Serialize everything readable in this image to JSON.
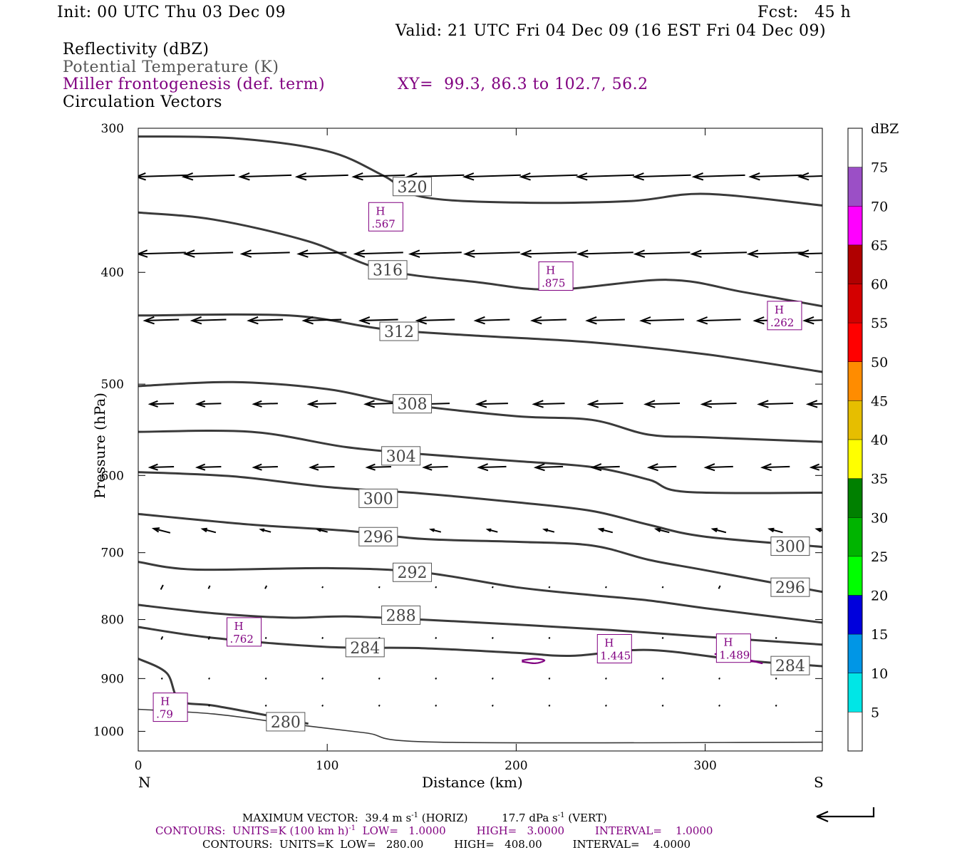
{
  "header": {
    "init": "Init: 00 UTC Thu 03 Dec 09",
    "fcst": "Fcst:   45 h",
    "valid": "Valid: 21 UTC Fri 04 Dec 09 (16 EST Fri 04 Dec 09)"
  },
  "fields": {
    "f1": "Reflectivity (dBZ)",
    "f2": "Potential Temperature (K)",
    "f3": "Miller frontogenesis (def. term)",
    "f4": "Circulation Vectors",
    "xy": "XY=  99.3, 86.3 to 102.7, 56.2"
  },
  "colors": {
    "theta": "#3a3a3a",
    "fronto": "#800080",
    "vector": "#000000"
  },
  "chart_data": {
    "type": "cross-section",
    "xlabel": "Distance (km)",
    "ylabel": "Pressure (hPa)",
    "xlim": [
      0,
      362
    ],
    "ylim": [
      300,
      1040
    ],
    "y_log": true,
    "xticks": [
      "0",
      "100",
      "200",
      "300"
    ],
    "xtick_values": [
      0,
      100,
      200,
      300
    ],
    "yticks": [
      "300",
      "400",
      "500",
      "600",
      "700",
      "800",
      "900",
      "1000"
    ],
    "ytick_values": [
      300,
      400,
      500,
      600,
      700,
      800,
      900,
      1000
    ],
    "x_left_end": "N",
    "x_right_end": "S",
    "theta_contours": [
      {
        "value": 320,
        "points": [
          [
            0,
            305
          ],
          [
            50,
            306
          ],
          [
            100,
            314
          ],
          [
            130,
            330
          ],
          [
            150,
            344
          ],
          [
            200,
            348
          ],
          [
            260,
            347
          ],
          [
            300,
            342
          ],
          [
            362,
            350
          ]
        ]
      },
      {
        "value": 316,
        "points": [
          [
            0,
            355
          ],
          [
            40,
            360
          ],
          [
            90,
            376
          ],
          [
            130,
            398
          ],
          [
            180,
            408
          ],
          [
            220,
            414
          ],
          [
            280,
            406
          ],
          [
            320,
            416
          ],
          [
            362,
            428
          ]
        ]
      },
      {
        "value": 312,
        "points": [
          [
            0,
            436
          ],
          [
            80,
            436
          ],
          [
            130,
            448
          ],
          [
            180,
            454
          ],
          [
            240,
            460
          ],
          [
            300,
            471
          ],
          [
            362,
            488
          ]
        ]
      },
      {
        "value": 308,
        "points": [
          [
            0,
            502
          ],
          [
            50,
            498
          ],
          [
            100,
            505
          ],
          [
            140,
            520
          ],
          [
            200,
            533
          ],
          [
            240,
            537
          ],
          [
            270,
            553
          ],
          [
            300,
            556
          ],
          [
            362,
            561
          ]
        ]
      },
      {
        "value": 304,
        "points": [
          [
            0,
            550
          ],
          [
            60,
            550
          ],
          [
            110,
            567
          ],
          [
            150,
            575
          ],
          [
            200,
            583
          ],
          [
            240,
            590
          ],
          [
            270,
            605
          ],
          [
            290,
            620
          ],
          [
            362,
            621
          ]
        ]
      },
      {
        "value": 300,
        "points": [
          [
            0,
            596
          ],
          [
            50,
            601
          ],
          [
            100,
            614
          ],
          [
            150,
            622
          ],
          [
            200,
            633
          ],
          [
            240,
            644
          ],
          [
            270,
            662
          ],
          [
            300,
            678
          ],
          [
            362,
            692
          ]
        ]
      },
      {
        "value": 296,
        "points": [
          [
            0,
            648
          ],
          [
            60,
            662
          ],
          [
            110,
            670
          ],
          [
            150,
            681
          ],
          [
            200,
            685
          ],
          [
            240,
            690
          ],
          [
            270,
            710
          ],
          [
            300,
            725
          ],
          [
            362,
            757
          ]
        ]
      },
      {
        "value": 292,
        "points": [
          [
            0,
            713
          ],
          [
            30,
            724
          ],
          [
            100,
            722
          ],
          [
            150,
            728
          ],
          [
            200,
            750
          ],
          [
            240,
            762
          ],
          [
            270,
            770
          ],
          [
            300,
            782
          ],
          [
            362,
            805
          ]
        ]
      },
      {
        "value": 288,
        "points": [
          [
            0,
            777
          ],
          [
            40,
            790
          ],
          [
            80,
            797
          ],
          [
            110,
            795
          ],
          [
            150,
            800
          ],
          [
            200,
            808
          ],
          [
            250,
            817
          ],
          [
            300,
            828
          ],
          [
            362,
            841
          ]
        ]
      },
      {
        "value": 284,
        "points": [
          [
            0,
            812
          ],
          [
            40,
            830
          ],
          [
            100,
            845
          ],
          [
            150,
            847
          ],
          [
            200,
            855
          ],
          [
            230,
            860
          ],
          [
            270,
            850
          ],
          [
            320,
            868
          ],
          [
            362,
            878
          ]
        ]
      },
      {
        "value": 280,
        "points": [
          [
            0,
            957
          ],
          [
            40,
            966
          ],
          [
            80,
            985
          ],
          [
            120,
            1003
          ],
          [
            160,
            1022
          ],
          [
            362,
            1022
          ]
        ]
      }
    ],
    "terrain_line": [
      [
        0,
        865
      ],
      [
        15,
        890
      ],
      [
        22,
        940
      ],
      [
        40,
        950
      ],
      [
        70,
        970
      ],
      [
        90,
        985
      ]
    ],
    "theta_labels": [
      {
        "text": "320",
        "x": 145,
        "p": 337
      },
      {
        "text": "316",
        "x": 132,
        "p": 398
      },
      {
        "text": "312",
        "x": 138,
        "p": 450
      },
      {
        "text": "308",
        "x": 145,
        "p": 520
      },
      {
        "text": "304",
        "x": 139,
        "p": 577
      },
      {
        "text": "300",
        "x": 127,
        "p": 628
      },
      {
        "text": "296",
        "x": 127,
        "p": 678
      },
      {
        "text": "292",
        "x": 145,
        "p": 728
      },
      {
        "text": "288",
        "x": 139,
        "p": 793
      },
      {
        "text": "284",
        "x": 120,
        "p": 846
      },
      {
        "text": "280",
        "x": 78,
        "p": 981
      },
      {
        "text": "300",
        "x": 345,
        "p": 691
      },
      {
        "text": "296",
        "x": 345,
        "p": 750
      },
      {
        "text": "284",
        "x": 345,
        "p": 877
      }
    ],
    "fronto_highs": [
      {
        "label": "H",
        "value": ".567",
        "x": 131,
        "p": 358
      },
      {
        "label": "H",
        "value": ".875",
        "x": 221,
        "p": 403
      },
      {
        "label": "H",
        "value": ".262",
        "x": 342,
        "p": 436
      },
      {
        "label": "H",
        "value": ".762",
        "x": 56,
        "p": 820
      },
      {
        "label": "H",
        "value": "1.445",
        "x": 252,
        "p": 848
      },
      {
        "label": "H",
        "value": "1.489",
        "x": 315,
        "p": 847
      },
      {
        "label": "H",
        "value": ".79",
        "x": 17,
        "p": 953
      }
    ],
    "fronto_contours": [
      [
        [
          203,
          868
        ],
        [
          210,
          865
        ],
        [
          215,
          868
        ],
        [
          210,
          873
        ],
        [
          203,
          870
        ]
      ],
      [
        [
          305,
          857
        ],
        [
          315,
          860
        ],
        [
          322,
          866
        ],
        [
          330,
          873
        ],
        [
          326,
          870
        ],
        [
          320,
          868
        ]
      ]
    ],
    "vector_rows": [
      {
        "p": 330,
        "u": [
          -30,
          -30,
          -30,
          -30,
          -30,
          -33,
          -33,
          -33,
          -33,
          -33,
          -30,
          -30,
          -28,
          -20,
          -18
        ]
      },
      {
        "p": 385,
        "u": [
          -28,
          -28,
          -28,
          -28,
          -28,
          -30,
          -32,
          -32,
          -32,
          -32,
          -32,
          -32,
          -28,
          -28,
          -20
        ]
      },
      {
        "p": 440,
        "u": [
          -20,
          -20,
          -20,
          -22,
          -22,
          -22,
          -20,
          -20,
          -22,
          -25,
          -25,
          -25,
          -22,
          -22,
          -18
        ]
      },
      {
        "p": 520,
        "u": [
          -14,
          -14,
          -14,
          -16,
          -16,
          -16,
          -18,
          -18,
          -20,
          -20,
          -20,
          -20,
          -18,
          -18,
          -10
        ]
      },
      {
        "p": 590,
        "u": [
          -14,
          -14,
          -14,
          -14,
          -14,
          -14,
          -16,
          -16,
          -16,
          -16,
          -16,
          -16,
          -14,
          -12,
          -8
        ]
      },
      {
        "p": 670,
        "u": [
          -10,
          -8,
          -6,
          -6,
          -6,
          -6,
          -6,
          -6,
          -8,
          -8,
          -8,
          -8,
          -8,
          -6,
          -6
        ]
      },
      {
        "p": 750,
        "u": [
          -3,
          -2,
          -2,
          -1,
          -1,
          -1,
          -1,
          -1,
          -1,
          -1,
          -2,
          -2,
          -2,
          -2,
          -2
        ]
      },
      {
        "p": 830,
        "u": [
          -2,
          -2,
          -1,
          -1,
          -1,
          -1,
          -1,
          -1,
          -1,
          -1,
          -1,
          -1,
          -1,
          -1,
          -1
        ]
      },
      {
        "p": 900,
        "u": [
          -1,
          -1,
          -1,
          -1,
          -1,
          -1,
          -1,
          -1,
          -1,
          -1,
          -1,
          -1,
          -1,
          -1,
          -1
        ]
      },
      {
        "p": 950,
        "u": [
          -1,
          -1,
          -1,
          -1,
          -1,
          -1,
          -1,
          -1,
          -1,
          -1,
          -1,
          -1,
          -1,
          -1,
          -1
        ]
      }
    ],
    "vector_x": [
      5,
      30,
      60,
      90,
      120,
      150,
      180,
      210,
      240,
      270,
      300,
      330,
      355,
      362,
      362
    ],
    "colorbar": {
      "title": "dBZ",
      "labels": [
        "75",
        "70",
        "65",
        "60",
        "55",
        "50",
        "45",
        "40",
        "35",
        "30",
        "25",
        "20",
        "15",
        "10",
        "5"
      ],
      "colors": [
        "#ffffff",
        "#9b4fc6",
        "#ff00ff",
        "#b00000",
        "#d40000",
        "#ff0000",
        "#ff8c00",
        "#e6be00",
        "#ffff00",
        "#008000",
        "#00b400",
        "#00ff00",
        "#0000dc",
        "#0096e6",
        "#00e6e6",
        "#ffffff"
      ]
    }
  },
  "footer": {
    "max_vector_prefix": "MAXIMUM VECTOR:  39.4 m s",
    "max_vector_mid": " (HORIZ)          17.7 dPa s",
    "max_vector_suffix": " (VERT)",
    "contours1": "CONTOURS:  UNITS=K (100 km h)",
    "contours1_rest": "  LOW=   1.0000         HIGH=   3.0000         INTERVAL=    1.0000",
    "contours2": "CONTOURS:  UNITS=K  LOW=   280.00         HIGH=   408.00         INTERVAL=    4.0000",
    "superscript": "-1"
  }
}
